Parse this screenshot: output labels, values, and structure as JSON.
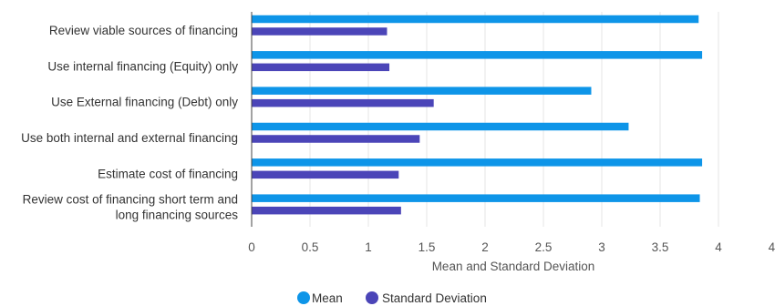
{
  "chart_data": {
    "type": "bar",
    "orientation": "horizontal",
    "title": "",
    "xlabel": "Mean and Standard Deviation",
    "ylabel": "",
    "xlim": [
      0,
      4.5
    ],
    "xticks": [
      0,
      0.5,
      1,
      1.5,
      2,
      2.5,
      3,
      3.5,
      4,
      4.5
    ],
    "xtick_labels": [
      "0",
      "0.5",
      "1",
      "1.5",
      "2",
      "2.5",
      "3",
      "3.5",
      "4",
      "4.5"
    ],
    "grid": true,
    "legend_position": "bottom-center",
    "categories": [
      [
        "Review viable sources of financing"
      ],
      [
        "Use internal financing (Equity) only"
      ],
      [
        "Use External financing (Debt) only"
      ],
      [
        "Use both internal and external financing"
      ],
      [
        "Estimate cost of financing"
      ],
      [
        "Review cost of financing short term and",
        "long financing sources"
      ]
    ],
    "series": [
      {
        "name": "Mean",
        "color": "#0e95e8",
        "values": [
          3.83,
          3.86,
          2.91,
          3.23,
          3.86,
          3.84
        ]
      },
      {
        "name": "Standard Deviation",
        "color": "#4b45b8",
        "values": [
          1.16,
          1.18,
          1.56,
          1.44,
          1.26,
          1.28
        ]
      }
    ]
  }
}
